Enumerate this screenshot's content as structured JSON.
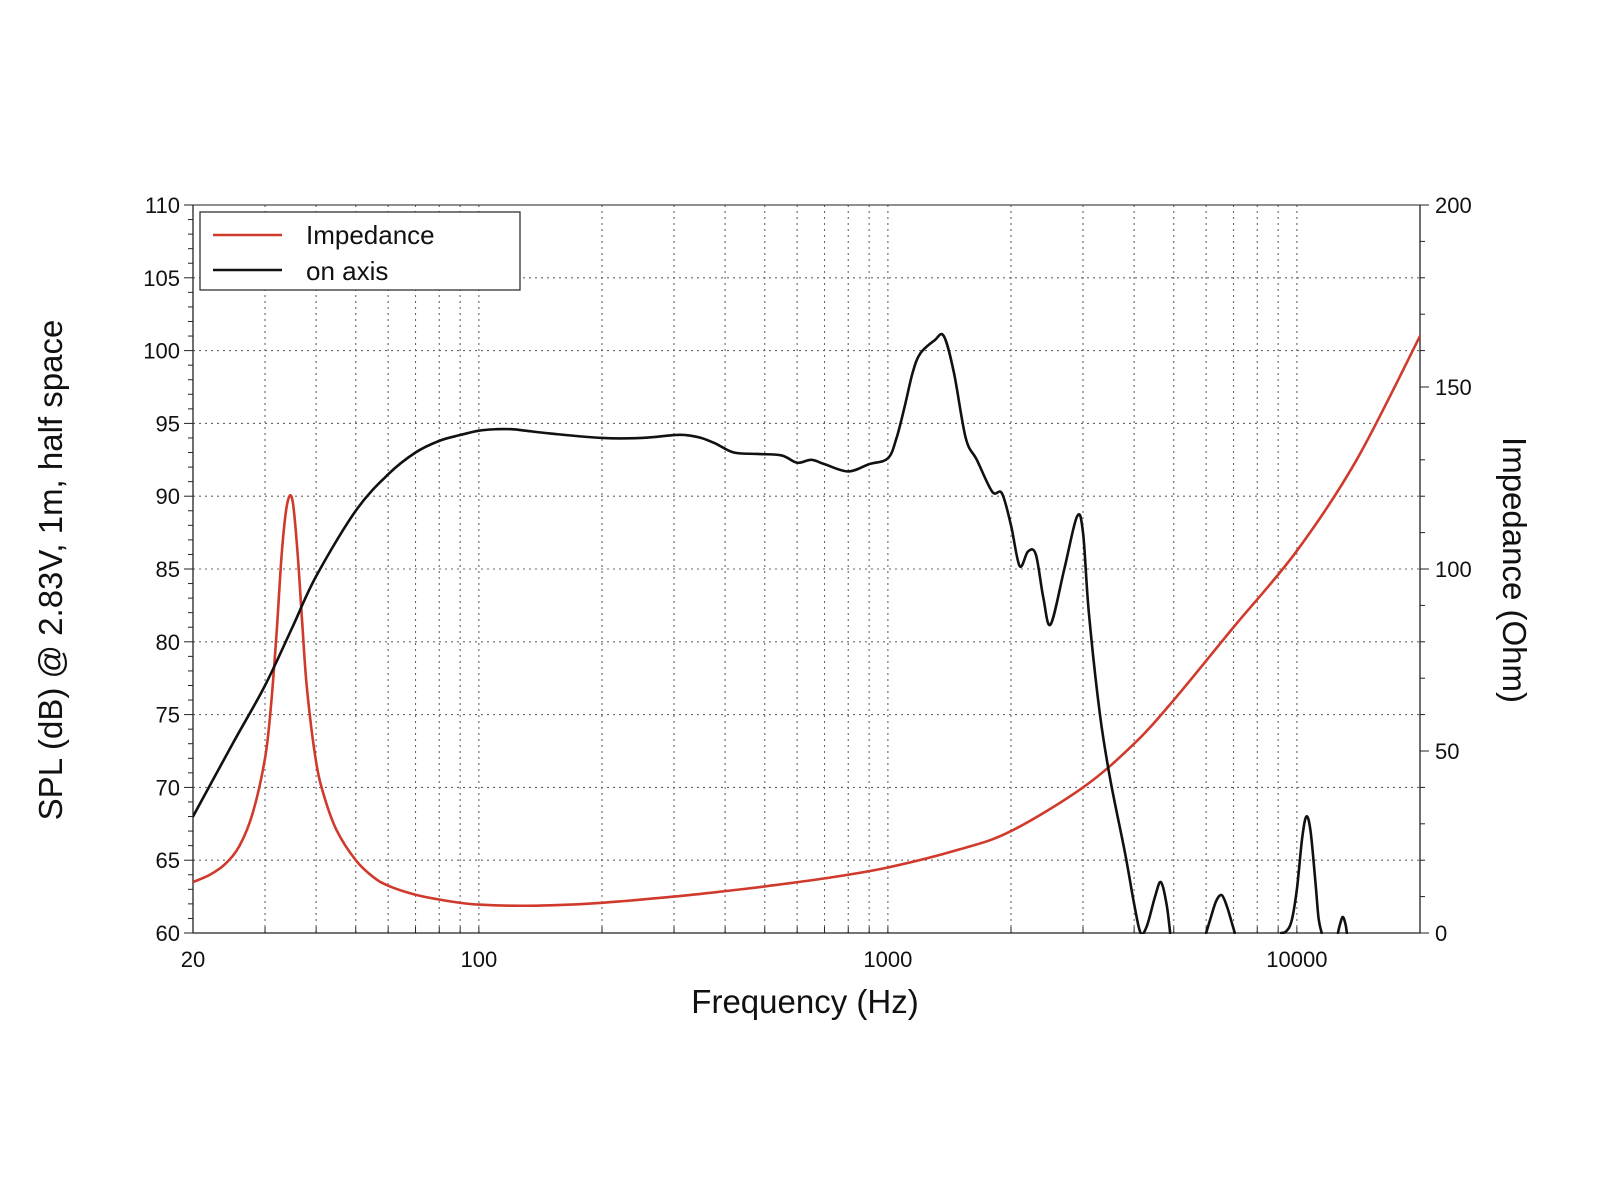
{
  "chart_data": {
    "type": "line",
    "xscale": "log",
    "xlim": [
      20,
      20000
    ],
    "xlabel": "Frequency (Hz)",
    "xticks": [
      20,
      100,
      1000,
      10000
    ],
    "xtick_labels": [
      "20",
      "100",
      "1000",
      "10000"
    ],
    "y_left": {
      "label": "SPL (dB) @ 2.83V, 1m, half space",
      "lim": [
        60,
        110
      ],
      "ticks": [
        60,
        65,
        70,
        75,
        80,
        85,
        90,
        95,
        100,
        105,
        110
      ],
      "tick_labels": [
        "60",
        "65",
        "70",
        "75",
        "80",
        "85",
        "90",
        "95",
        "100",
        "105",
        "110"
      ]
    },
    "y_right": {
      "label": "Impedance (Ohm)",
      "lim": [
        0,
        200
      ],
      "ticks": [
        0,
        50,
        100,
        150,
        200
      ],
      "tick_labels": [
        "0",
        "50",
        "100",
        "150",
        "200"
      ]
    },
    "grid": true,
    "legend": {
      "placement": "top-left"
    },
    "series": [
      {
        "name": "Impedance",
        "color": "#d03a2c",
        "axis": "right",
        "x": [
          20,
          22,
          24,
          26,
          28,
          30,
          31,
          32,
          33,
          34,
          35,
          36,
          37,
          38,
          40,
          42,
          45,
          50,
          55,
          60,
          70,
          80,
          90,
          100,
          120,
          150,
          200,
          300,
          400,
          500,
          700,
          1000,
          1500,
          2000,
          3000,
          4000,
          5000,
          7000,
          10000,
          14000,
          20000
        ],
        "values": [
          14,
          16,
          19,
          24,
          33,
          48,
          62,
          82,
          105,
          118,
          119,
          105,
          85,
          67,
          47,
          37,
          28,
          20,
          15.5,
          13,
          10.5,
          9.2,
          8.3,
          7.8,
          7.5,
          7.6,
          8.3,
          10,
          11.5,
          12.8,
          15,
          18,
          23,
          28,
          40,
          52,
          64,
          84,
          105,
          130,
          164
        ]
      },
      {
        "name": "on axis",
        "color": "#111111",
        "axis": "left",
        "x": [
          20,
          25,
          30,
          35,
          40,
          50,
          60,
          70,
          80,
          90,
          100,
          110,
          120,
          130,
          150,
          200,
          250,
          300,
          320,
          350,
          380,
          420,
          480,
          550,
          600,
          650,
          700,
          800,
          900,
          1000,
          1050,
          1100,
          1150,
          1200,
          1300,
          1370,
          1450,
          1550,
          1650,
          1800,
          1900,
          2000,
          2100,
          2200,
          2300,
          2400,
          2500,
          2700,
          2900,
          3000,
          3100,
          3300,
          3500,
          3800,
          4000,
          4150,
          4300,
          4500,
          4650,
          4800,
          4900
        ],
        "values": [
          68,
          73,
          77,
          81,
          84.5,
          89,
          91.5,
          93,
          93.8,
          94.2,
          94.5,
          94.6,
          94.6,
          94.5,
          94.3,
          94.0,
          94.0,
          94.2,
          94.2,
          94.0,
          93.6,
          93.0,
          92.9,
          92.8,
          92.3,
          92.5,
          92.2,
          91.7,
          92.2,
          92.6,
          94.0,
          96.2,
          98.5,
          99.8,
          100.7,
          101.0,
          98.5,
          94.0,
          92.5,
          90.3,
          90.2,
          88.0,
          85.2,
          86.2,
          86.0,
          83.0,
          81.2,
          85.0,
          88.6,
          87.5,
          82.0,
          75.0,
          70.5,
          65.5,
          62.0,
          60.0,
          60.5,
          62.5,
          63.5,
          62.0,
          60.0
        ],
        "extra_segments": [
          {
            "x": [
              6000,
              6150,
              6350,
              6550,
              6750,
              6950,
              7050
            ],
            "values": [
              60.0,
              61.0,
              62.2,
              62.6,
              61.8,
              60.6,
              60.0
            ]
          },
          {
            "x": [
              9150,
              9400,
              9700,
              10000,
              10300,
              10550,
              10800,
              11100,
              11300,
              11500
            ],
            "values": [
              60.0,
              60.1,
              60.8,
              63.0,
              66.5,
              68.0,
              67.0,
              63.5,
              61.0,
              60.0
            ]
          },
          {
            "x": [
              12600,
              12750,
              12950,
              13150,
              13250
            ],
            "values": [
              60.0,
              60.6,
              61.1,
              60.6,
              60.0
            ]
          }
        ]
      }
    ]
  }
}
